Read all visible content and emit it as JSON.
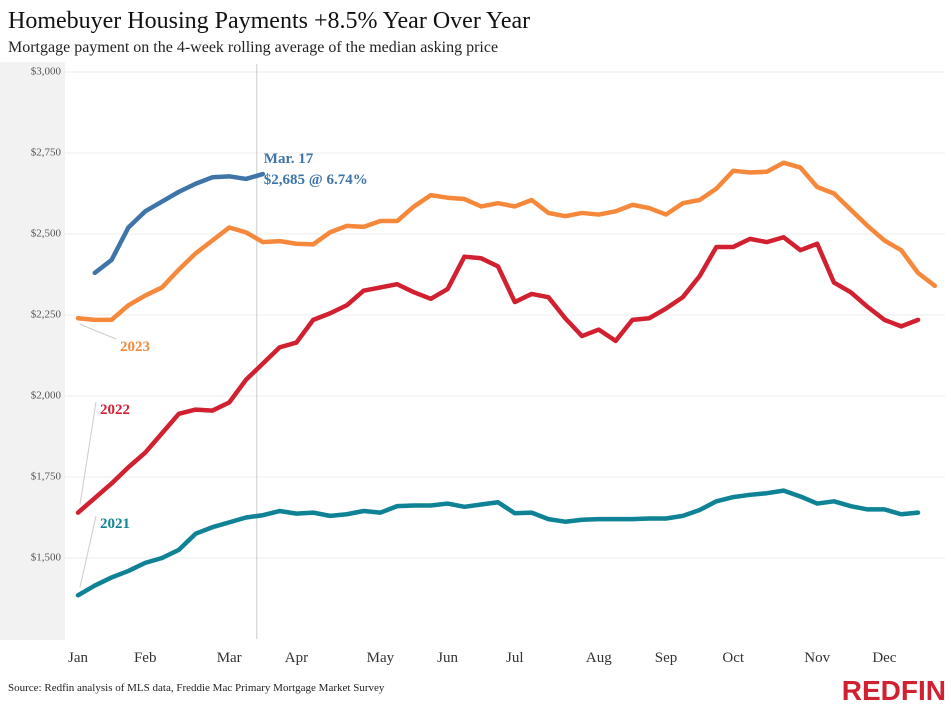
{
  "chart_data": {
    "type": "line",
    "title": "Homebuyer Housing Payments +8.5% Year Over Year",
    "subtitle": "Mortgage payment on the 4-week rolling average of the median asking price",
    "source": "Source: Redfin analysis of MLS data, Freddie Mac Primary Mortgage Market Survey",
    "brand": "REDFIN",
    "annotations": [
      "Mar. 17",
      "$2,685 @ 6.74%"
    ],
    "categories": [
      "Jan",
      null,
      null,
      null,
      "Feb",
      null,
      null,
      null,
      null,
      "Mar",
      null,
      null,
      null,
      "Apr",
      null,
      null,
      null,
      null,
      "May",
      null,
      null,
      null,
      "Jun",
      null,
      null,
      null,
      "Jul",
      null,
      null,
      null,
      null,
      "Aug",
      null,
      null,
      null,
      "Sep",
      null,
      null,
      null,
      "Oct",
      null,
      null,
      null,
      null,
      "Nov",
      null,
      null,
      null,
      "Dec",
      null,
      null,
      null
    ],
    "series": [
      {
        "name": "2021",
        "color": "#0f8296",
        "values": [
          1385,
          1415,
          1440,
          1460,
          1485,
          1500,
          1525,
          1575,
          1595,
          1610,
          1625,
          1632,
          1645,
          1637,
          1640,
          1630,
          1635,
          1645,
          1640,
          1660,
          1662,
          1662,
          1668,
          1658,
          1665,
          1672,
          1638,
          1640,
          1620,
          1612,
          1618,
          1620,
          1620,
          1620,
          1622,
          1622,
          1630,
          1648,
          1675,
          1688,
          1695,
          1700,
          1708,
          1690,
          1668,
          1675,
          1660,
          1650,
          1650,
          1635,
          1640,
          null
        ]
      },
      {
        "name": "2022",
        "color": "#d12030",
        "values": [
          1640,
          1685,
          1730,
          1780,
          1825,
          1885,
          1945,
          1958,
          1955,
          1980,
          2050,
          2100,
          2150,
          2165,
          2235,
          2255,
          2280,
          2325,
          2335,
          2345,
          2320,
          2300,
          2330,
          2430,
          2425,
          2400,
          2290,
          2315,
          2305,
          2240,
          2185,
          2205,
          2170,
          2235,
          2240,
          2270,
          2305,
          2370,
          2460,
          2460,
          2485,
          2475,
          2490,
          2450,
          2470,
          2350,
          2320,
          2275,
          2235,
          2215,
          2235,
          null
        ]
      },
      {
        "name": "2023",
        "color": "#f5883a",
        "values": [
          2240,
          2235,
          2235,
          2280,
          2310,
          2335,
          2390,
          2440,
          2480,
          2520,
          2505,
          2475,
          2478,
          2470,
          2468,
          2505,
          2525,
          2522,
          2540,
          2540,
          2585,
          2620,
          2612,
          2608,
          2585,
          2595,
          2585,
          2605,
          2565,
          2555,
          2565,
          2560,
          2570,
          2590,
          2580,
          2560,
          2595,
          2605,
          2640,
          2695,
          2690,
          2692,
          2720,
          2705,
          2645,
          2625,
          2575,
          2525,
          2480,
          2450,
          2380,
          2340
        ]
      },
      {
        "color": "#3e74a8",
        "values": [
          null,
          2380,
          2420,
          2520,
          2570,
          2600,
          2630,
          2655,
          2675,
          2678,
          2670,
          2685,
          null,
          null,
          null,
          null,
          null,
          null,
          null,
          null,
          null,
          null,
          null,
          null,
          null,
          null,
          null,
          null,
          null,
          null,
          null,
          null,
          null,
          null,
          null,
          null,
          null,
          null,
          null,
          null,
          null,
          null,
          null,
          null,
          null,
          null,
          null,
          null,
          null,
          null,
          null,
          null
        ]
      }
    ],
    "ylim": [
      1250,
      3000
    ],
    "yticks": [
      {
        "value": 1500,
        "label": "$1,500"
      },
      {
        "value": 1750,
        "label": "$1,750"
      },
      {
        "value": 2000,
        "label": "$2,000"
      },
      {
        "value": 2250,
        "label": "$2,250"
      },
      {
        "value": 2500,
        "label": "$2,500"
      },
      {
        "value": 2750,
        "label": "$2,750"
      },
      {
        "value": 3000,
        "label": "$3,000"
      }
    ],
    "grid": true
  }
}
